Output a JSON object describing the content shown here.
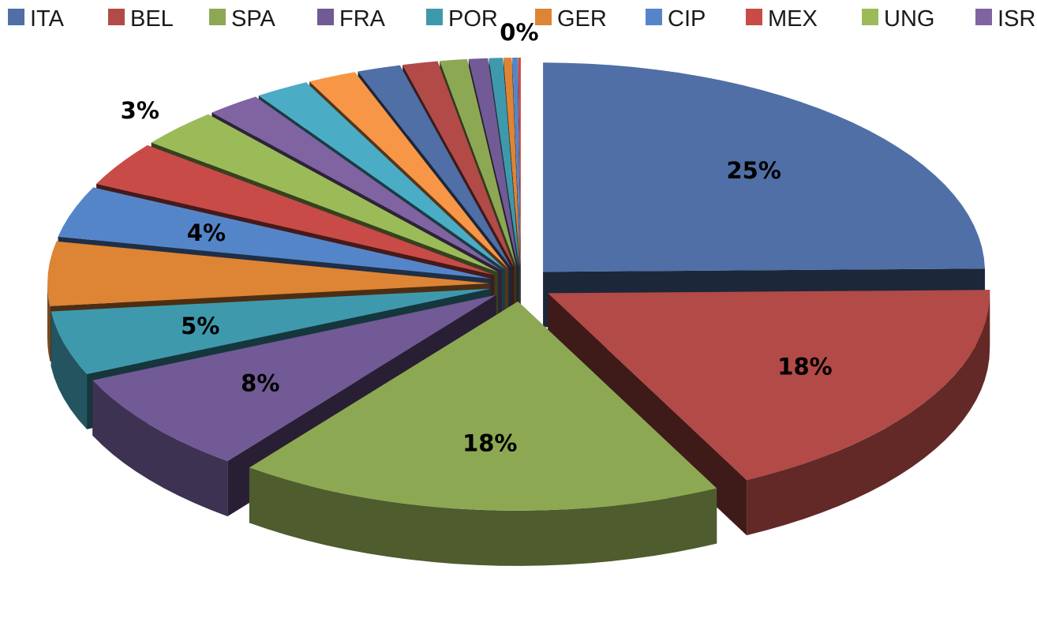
{
  "chart_data": {
    "type": "pie",
    "style": "3d-exploded",
    "legend_position": "top",
    "legend": [
      {
        "label": "ITA",
        "color": "#4f6fa6"
      },
      {
        "label": "BEL",
        "color": "#b24a47"
      },
      {
        "label": "SPA",
        "color": "#8da853"
      },
      {
        "label": "FRA",
        "color": "#715a95"
      },
      {
        "label": "POR",
        "color": "#3f99ad"
      },
      {
        "label": "GER",
        "color": "#dd8435"
      },
      {
        "label": "CIP",
        "color": "#5585c9"
      },
      {
        "label": "MEX",
        "color": "#c84b48"
      },
      {
        "label": "UNG",
        "color": "#9bbb59"
      },
      {
        "label": "ISR",
        "color": "#8064a2"
      }
    ],
    "palette": [
      "#4f6fa6",
      "#b24a47",
      "#8da853",
      "#715a95",
      "#3f99ad",
      "#dd8435",
      "#5585c9",
      "#c84b48",
      "#9bbb59",
      "#8064a2",
      "#4bacc6",
      "#f79646"
    ],
    "values": [
      25,
      18,
      18,
      8,
      5,
      5,
      4,
      3.5,
      3,
      2,
      2,
      1.8,
      1.6,
      1.3,
      1,
      0.7,
      0.5,
      0.3,
      0.2,
      0.1
    ],
    "data_labels": [
      {
        "slice": 0,
        "text": "25%"
      },
      {
        "slice": 1,
        "text": "18%"
      },
      {
        "slice": 2,
        "text": "18%"
      },
      {
        "slice": 3,
        "text": "8%"
      },
      {
        "slice": 4,
        "text": "5%"
      },
      {
        "slice": 6,
        "text": "4%"
      },
      {
        "slice": 8,
        "text": "3%"
      },
      {
        "slice": 19,
        "text": "0%"
      }
    ]
  }
}
